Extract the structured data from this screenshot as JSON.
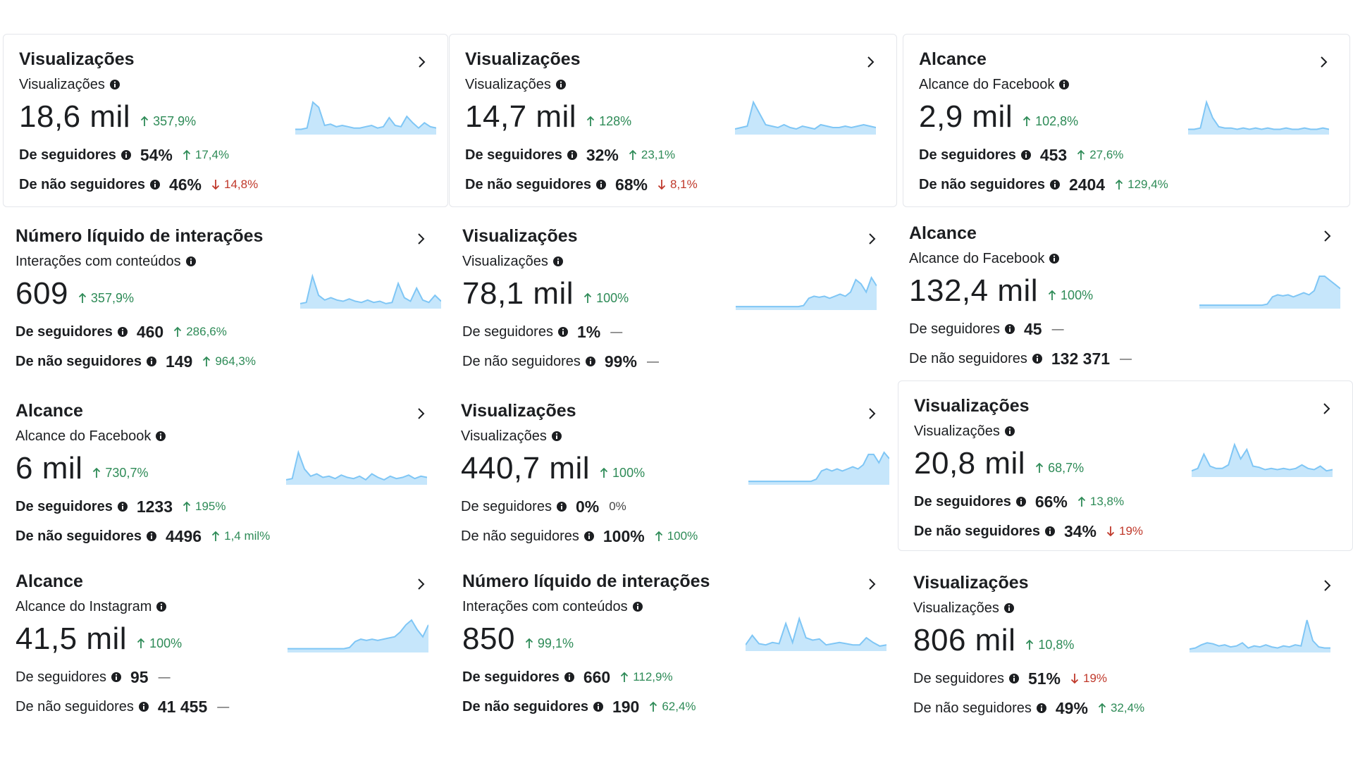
{
  "cards": [
    {
      "title": "Visualizações",
      "sub_label": "Visualizações",
      "value": "18,6 mil",
      "change": "357,9%",
      "dir": "up",
      "followers_label": "De seguidores",
      "followers_value": "54%",
      "followers_change": "17,4%",
      "followers_dir": "up",
      "nonfollowers_label": "De não seguidores",
      "nonfollowers_value": "46%",
      "nonfollowers_change": "14,8%",
      "nonfollowers_dir": "down"
    },
    {
      "title": "Visualizações",
      "sub_label": "Visualizações",
      "value": "14,7 mil",
      "change": "128%",
      "dir": "up",
      "followers_label": "De seguidores",
      "followers_value": "32%",
      "followers_change": "23,1%",
      "followers_dir": "up",
      "nonfollowers_label": "De não seguidores",
      "nonfollowers_value": "68%",
      "nonfollowers_change": "8,1%",
      "nonfollowers_dir": "down"
    },
    {
      "title": "Alcance",
      "sub_label": "Alcance do Facebook",
      "value": "2,9 mil",
      "change": "102,8%",
      "dir": "up",
      "followers_label": "De seguidores",
      "followers_value": "453",
      "followers_change": "27,6%",
      "followers_dir": "up",
      "nonfollowers_label": "De não seguidores",
      "nonfollowers_value": "2404",
      "nonfollowers_change": "129,4%",
      "nonfollowers_dir": "up"
    },
    {
      "title": "Número líquido de interações",
      "sub_label": "Interações com conteúdos",
      "value": "609",
      "change": "357,9%",
      "dir": "up",
      "followers_label": "De seguidores",
      "followers_value": "460",
      "followers_change": "286,6%",
      "followers_dir": "up",
      "nonfollowers_label": "De não seguidores",
      "nonfollowers_value": "149",
      "nonfollowers_change": "964,3%",
      "nonfollowers_dir": "up"
    },
    {
      "title": "Visualizações",
      "sub_label": "Visualizações",
      "value": "78,1 mil",
      "change": "100%",
      "dir": "up",
      "followers_label": "De seguidores",
      "followers_value": "1%",
      "followers_change": "—",
      "followers_dir": "neutral",
      "nonfollowers_label": "De não seguidores",
      "nonfollowers_value": "99%",
      "nonfollowers_change": "—",
      "nonfollowers_dir": "neutral"
    },
    {
      "title": "Alcance",
      "sub_label": "Alcance do Facebook",
      "value": "132,4 mil",
      "change": "100%",
      "dir": "up",
      "followers_label": "De seguidores",
      "followers_value": "45",
      "followers_change": "—",
      "followers_dir": "neutral",
      "nonfollowers_label": "De não seguidores",
      "nonfollowers_value": "132 371",
      "nonfollowers_change": "—",
      "nonfollowers_dir": "neutral"
    },
    {
      "title": "Alcance",
      "sub_label": "Alcance do Facebook",
      "value": "6 mil",
      "change": "730,7%",
      "dir": "up",
      "followers_label": "De seguidores",
      "followers_value": "1233",
      "followers_change": "195%",
      "followers_dir": "up",
      "nonfollowers_label": "De não seguidores",
      "nonfollowers_value": "4496",
      "nonfollowers_change": "1,4 mil%",
      "nonfollowers_dir": "up"
    },
    {
      "title": "Visualizações",
      "sub_label": "Visualizações",
      "value": "440,7 mil",
      "change": "100%",
      "dir": "up",
      "followers_label": "De seguidores",
      "followers_value": "0%",
      "followers_change": "0%",
      "followers_dir": "neutral",
      "nonfollowers_label": "De não seguidores",
      "nonfollowers_value": "100%",
      "nonfollowers_change": "100%",
      "nonfollowers_dir": "up"
    },
    {
      "title": "Visualizações",
      "sub_label": "Visualizações",
      "value": "20,8 mil",
      "change": "68,7%",
      "dir": "up",
      "followers_label": "De seguidores",
      "followers_value": "66%",
      "followers_change": "13,8%",
      "followers_dir": "up",
      "nonfollowers_label": "De não seguidores",
      "nonfollowers_value": "34%",
      "nonfollowers_change": "19%",
      "nonfollowers_dir": "down"
    },
    {
      "title": "Alcance",
      "sub_label": "Alcance do Instagram",
      "value": "41,5 mil",
      "change": "100%",
      "dir": "up",
      "followers_label": "De seguidores",
      "followers_value": "95",
      "followers_change": "—",
      "followers_dir": "neutral",
      "nonfollowers_label": "De não seguidores",
      "nonfollowers_value": "41 455",
      "nonfollowers_change": "—",
      "nonfollowers_dir": "neutral"
    },
    {
      "title": "Número líquido de interações",
      "sub_label": "Interações com conteúdos",
      "value": "850",
      "change": "99,1%",
      "dir": "up",
      "followers_label": "De seguidores",
      "followers_value": "660",
      "followers_change": "112,9%",
      "followers_dir": "up",
      "nonfollowers_label": "De não seguidores",
      "nonfollowers_value": "190",
      "nonfollowers_change": "62,4%",
      "nonfollowers_dir": "up"
    },
    {
      "title": "Visualizações",
      "sub_label": "Visualizações",
      "value": "806 mil",
      "change": "10,8%",
      "dir": "up",
      "followers_label": "De seguidores",
      "followers_value": "51%",
      "followers_change": "19%",
      "followers_dir": "down",
      "nonfollowers_label": "De não seguidores",
      "nonfollowers_value": "49%",
      "nonfollowers_change": "32,4%",
      "nonfollowers_dir": "up"
    }
  ],
  "sparklines": [
    [
      3,
      3,
      4,
      24,
      20,
      6,
      7,
      5,
      6,
      5,
      4,
      4,
      5,
      6,
      4,
      5,
      12,
      6,
      5,
      13,
      8,
      4,
      8,
      5,
      4
    ],
    [
      3,
      4,
      5,
      22,
      14,
      6,
      5,
      4,
      6,
      4,
      3,
      5,
      4,
      3,
      6,
      5,
      4,
      4,
      5,
      4,
      5,
      6,
      5,
      4
    ],
    [
      3,
      3,
      4,
      24,
      12,
      5,
      4,
      4,
      3,
      4,
      3,
      4,
      3,
      4,
      3,
      3,
      4,
      3,
      3,
      4,
      3,
      3,
      4,
      3
    ],
    [
      3,
      4,
      26,
      10,
      6,
      8,
      6,
      5,
      7,
      5,
      4,
      6,
      4,
      5,
      3,
      4,
      20,
      8,
      5,
      16,
      6,
      4,
      10,
      5
    ],
    [
      2,
      2,
      2,
      2,
      2,
      2,
      2,
      2,
      2,
      2,
      2,
      2,
      2,
      3,
      10,
      12,
      11,
      12,
      10,
      12,
      14,
      12,
      16,
      28,
      24,
      16,
      30,
      22
    ],
    [
      2,
      2,
      2,
      2,
      2,
      2,
      2,
      2,
      2,
      2,
      2,
      2,
      2,
      3,
      10,
      12,
      11,
      12,
      10,
      12,
      14,
      12,
      16,
      30,
      30,
      26,
      22,
      18
    ],
    [
      3,
      4,
      26,
      12,
      6,
      8,
      5,
      6,
      4,
      7,
      5,
      4,
      6,
      3,
      8,
      5,
      3,
      6,
      4,
      5,
      7,
      4,
      6,
      5
    ],
    [
      2,
      2,
      2,
      2,
      2,
      2,
      2,
      2,
      2,
      2,
      2,
      2,
      2,
      4,
      12,
      14,
      12,
      14,
      12,
      14,
      16,
      14,
      18,
      28,
      28,
      20,
      30,
      24
    ],
    [
      4,
      6,
      18,
      8,
      6,
      6,
      9,
      26,
      14,
      22,
      8,
      7,
      5,
      6,
      5,
      6,
      5,
      6,
      9,
      6,
      5,
      8,
      4,
      5
    ],
    [
      2,
      2,
      2,
      2,
      2,
      2,
      2,
      2,
      2,
      2,
      2,
      3,
      8,
      10,
      9,
      10,
      9,
      10,
      11,
      12,
      16,
      22,
      26,
      18,
      12,
      22
    ],
    [
      4,
      12,
      5,
      4,
      6,
      5,
      22,
      6,
      26,
      10,
      8,
      9,
      4,
      5,
      6,
      5,
      4,
      4,
      10,
      6,
      3,
      4
    ],
    [
      2,
      3,
      6,
      8,
      7,
      5,
      6,
      4,
      5,
      8,
      3,
      5,
      4,
      6,
      4,
      3,
      5,
      4,
      6,
      5,
      30,
      10,
      4,
      3,
      3
    ]
  ],
  "spark_color": "#7fc6f5",
  "spark_fill": "#c6e6fb",
  "up_color": "#2e8b57",
  "down_color": "#c0392b"
}
